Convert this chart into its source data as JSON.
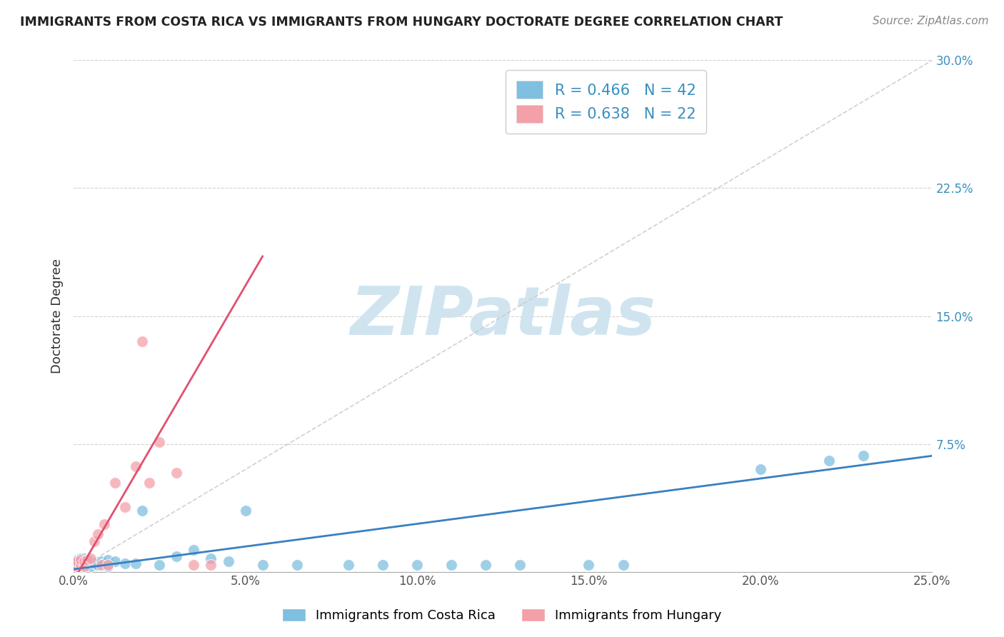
{
  "title": "IMMIGRANTS FROM COSTA RICA VS IMMIGRANTS FROM HUNGARY DOCTORATE DEGREE CORRELATION CHART",
  "source": "Source: ZipAtlas.com",
  "ylabel": "Doctorate Degree",
  "legend_label_1": "Immigrants from Costa Rica",
  "legend_label_2": "Immigrants from Hungary",
  "R1": 0.466,
  "N1": 42,
  "R2": 0.638,
  "N2": 22,
  "color1": "#7fbfdf",
  "color2": "#f4a0a8",
  "color1_line": "#3a7fc1",
  "color2_line": "#e05070",
  "watermark": "ZIPatlas",
  "watermark_color": "#d0e4f0",
  "xlim": [
    0.0,
    0.25
  ],
  "ylim": [
    0.0,
    0.3
  ],
  "xticks": [
    0.0,
    0.05,
    0.1,
    0.15,
    0.2,
    0.25
  ],
  "yticks": [
    0.0,
    0.075,
    0.15,
    0.225,
    0.3
  ],
  "xtick_labels": [
    "0.0%",
    "5.0%",
    "10.0%",
    "15.0%",
    "20.0%",
    "25.0%"
  ],
  "ytick_labels": [
    "",
    "7.5%",
    "15.0%",
    "22.5%",
    "30.0%"
  ],
  "cr_x": [
    0.001,
    0.001,
    0.001,
    0.002,
    0.002,
    0.002,
    0.003,
    0.003,
    0.003,
    0.004,
    0.004,
    0.005,
    0.005,
    0.006,
    0.007,
    0.008,
    0.009,
    0.01,
    0.01,
    0.012,
    0.015,
    0.018,
    0.02,
    0.025,
    0.03,
    0.035,
    0.04,
    0.045,
    0.05,
    0.055,
    0.065,
    0.08,
    0.09,
    0.1,
    0.11,
    0.12,
    0.13,
    0.15,
    0.16,
    0.2,
    0.22,
    0.23
  ],
  "cr_y": [
    0.003,
    0.005,
    0.007,
    0.003,
    0.005,
    0.008,
    0.003,
    0.006,
    0.008,
    0.004,
    0.007,
    0.003,
    0.006,
    0.005,
    0.004,
    0.006,
    0.005,
    0.003,
    0.007,
    0.006,
    0.005,
    0.005,
    0.036,
    0.004,
    0.009,
    0.013,
    0.008,
    0.006,
    0.036,
    0.004,
    0.004,
    0.004,
    0.004,
    0.004,
    0.004,
    0.004,
    0.004,
    0.004,
    0.004,
    0.06,
    0.065,
    0.068
  ],
  "hu_x": [
    0.001,
    0.001,
    0.002,
    0.002,
    0.003,
    0.003,
    0.004,
    0.005,
    0.006,
    0.007,
    0.008,
    0.009,
    0.01,
    0.012,
    0.015,
    0.018,
    0.02,
    0.022,
    0.025,
    0.03,
    0.035,
    0.04
  ],
  "hu_y": [
    0.003,
    0.006,
    0.004,
    0.007,
    0.003,
    0.006,
    0.007,
    0.008,
    0.018,
    0.022,
    0.004,
    0.028,
    0.004,
    0.052,
    0.038,
    0.062,
    0.135,
    0.052,
    0.076,
    0.058,
    0.004,
    0.004
  ],
  "trend1_x0": 0.0,
  "trend1_y0": 0.0015,
  "trend1_x1": 0.25,
  "trend1_y1": 0.068,
  "trend2_x0": 0.0,
  "trend2_y0": -0.005,
  "trend2_x1": 0.055,
  "trend2_y1": 0.185,
  "refline_x0": 0.0,
  "refline_y0": 0.0,
  "refline_x1": 0.25,
  "refline_y1": 0.3
}
